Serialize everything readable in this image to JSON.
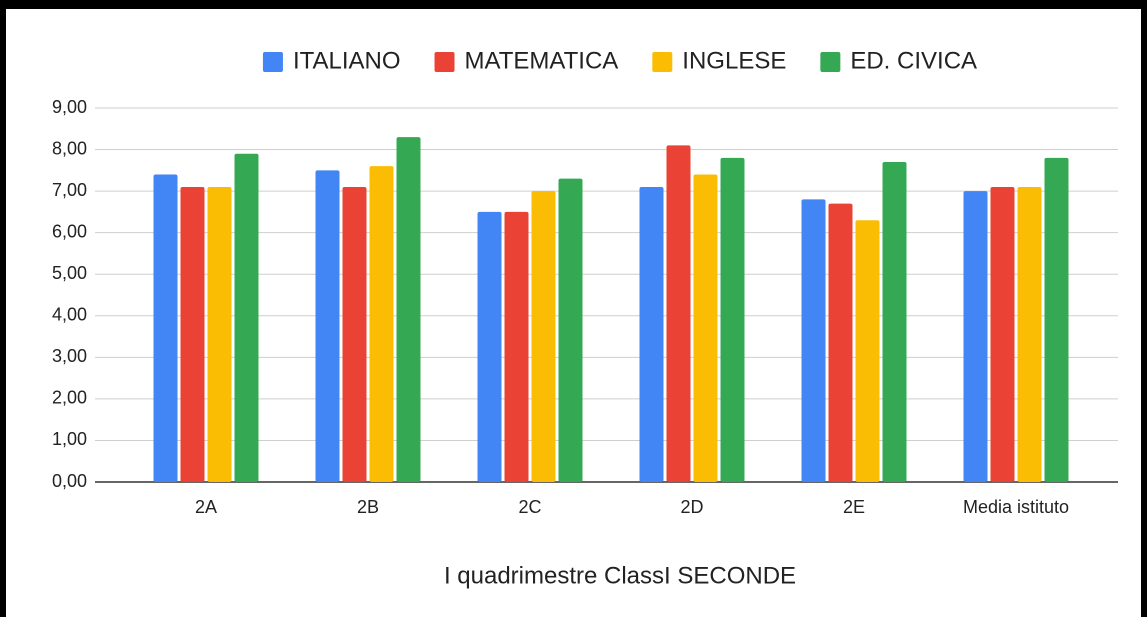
{
  "chart_data": {
    "type": "bar",
    "x_label": "I quadrimestre ClassI SECONDE",
    "categories": [
      "2A",
      "2B",
      "2C",
      "2D",
      "2E",
      "Media istituto"
    ],
    "series": [
      {
        "name": "ITALIANO",
        "color": "#4285f4",
        "values": [
          7.4,
          7.5,
          6.5,
          7.1,
          6.8,
          7.0
        ]
      },
      {
        "name": "MATEMATICA",
        "color": "#ea4335",
        "values": [
          7.1,
          7.1,
          6.5,
          8.1,
          6.7,
          7.1
        ]
      },
      {
        "name": "INGLESE",
        "color": "#fbbc04",
        "values": [
          7.1,
          7.6,
          7.0,
          7.4,
          6.3,
          7.1
        ]
      },
      {
        "name": "ED. CIVICA",
        "color": "#34a853",
        "values": [
          7.9,
          8.3,
          7.3,
          7.8,
          7.7,
          7.8
        ]
      }
    ],
    "ylim": [
      0,
      9
    ],
    "yticks": [
      {
        "value": 0,
        "label": "0,00"
      },
      {
        "value": 1,
        "label": "1,00"
      },
      {
        "value": 2,
        "label": "2,00"
      },
      {
        "value": 3,
        "label": "3,00"
      },
      {
        "value": 4,
        "label": "4,00"
      },
      {
        "value": 5,
        "label": "5,00"
      },
      {
        "value": 6,
        "label": "6,00"
      },
      {
        "value": 7,
        "label": "7,00"
      },
      {
        "value": 8,
        "label": "8,00"
      },
      {
        "value": 9,
        "label": "9,00"
      }
    ],
    "grid": true,
    "legend": "top"
  }
}
